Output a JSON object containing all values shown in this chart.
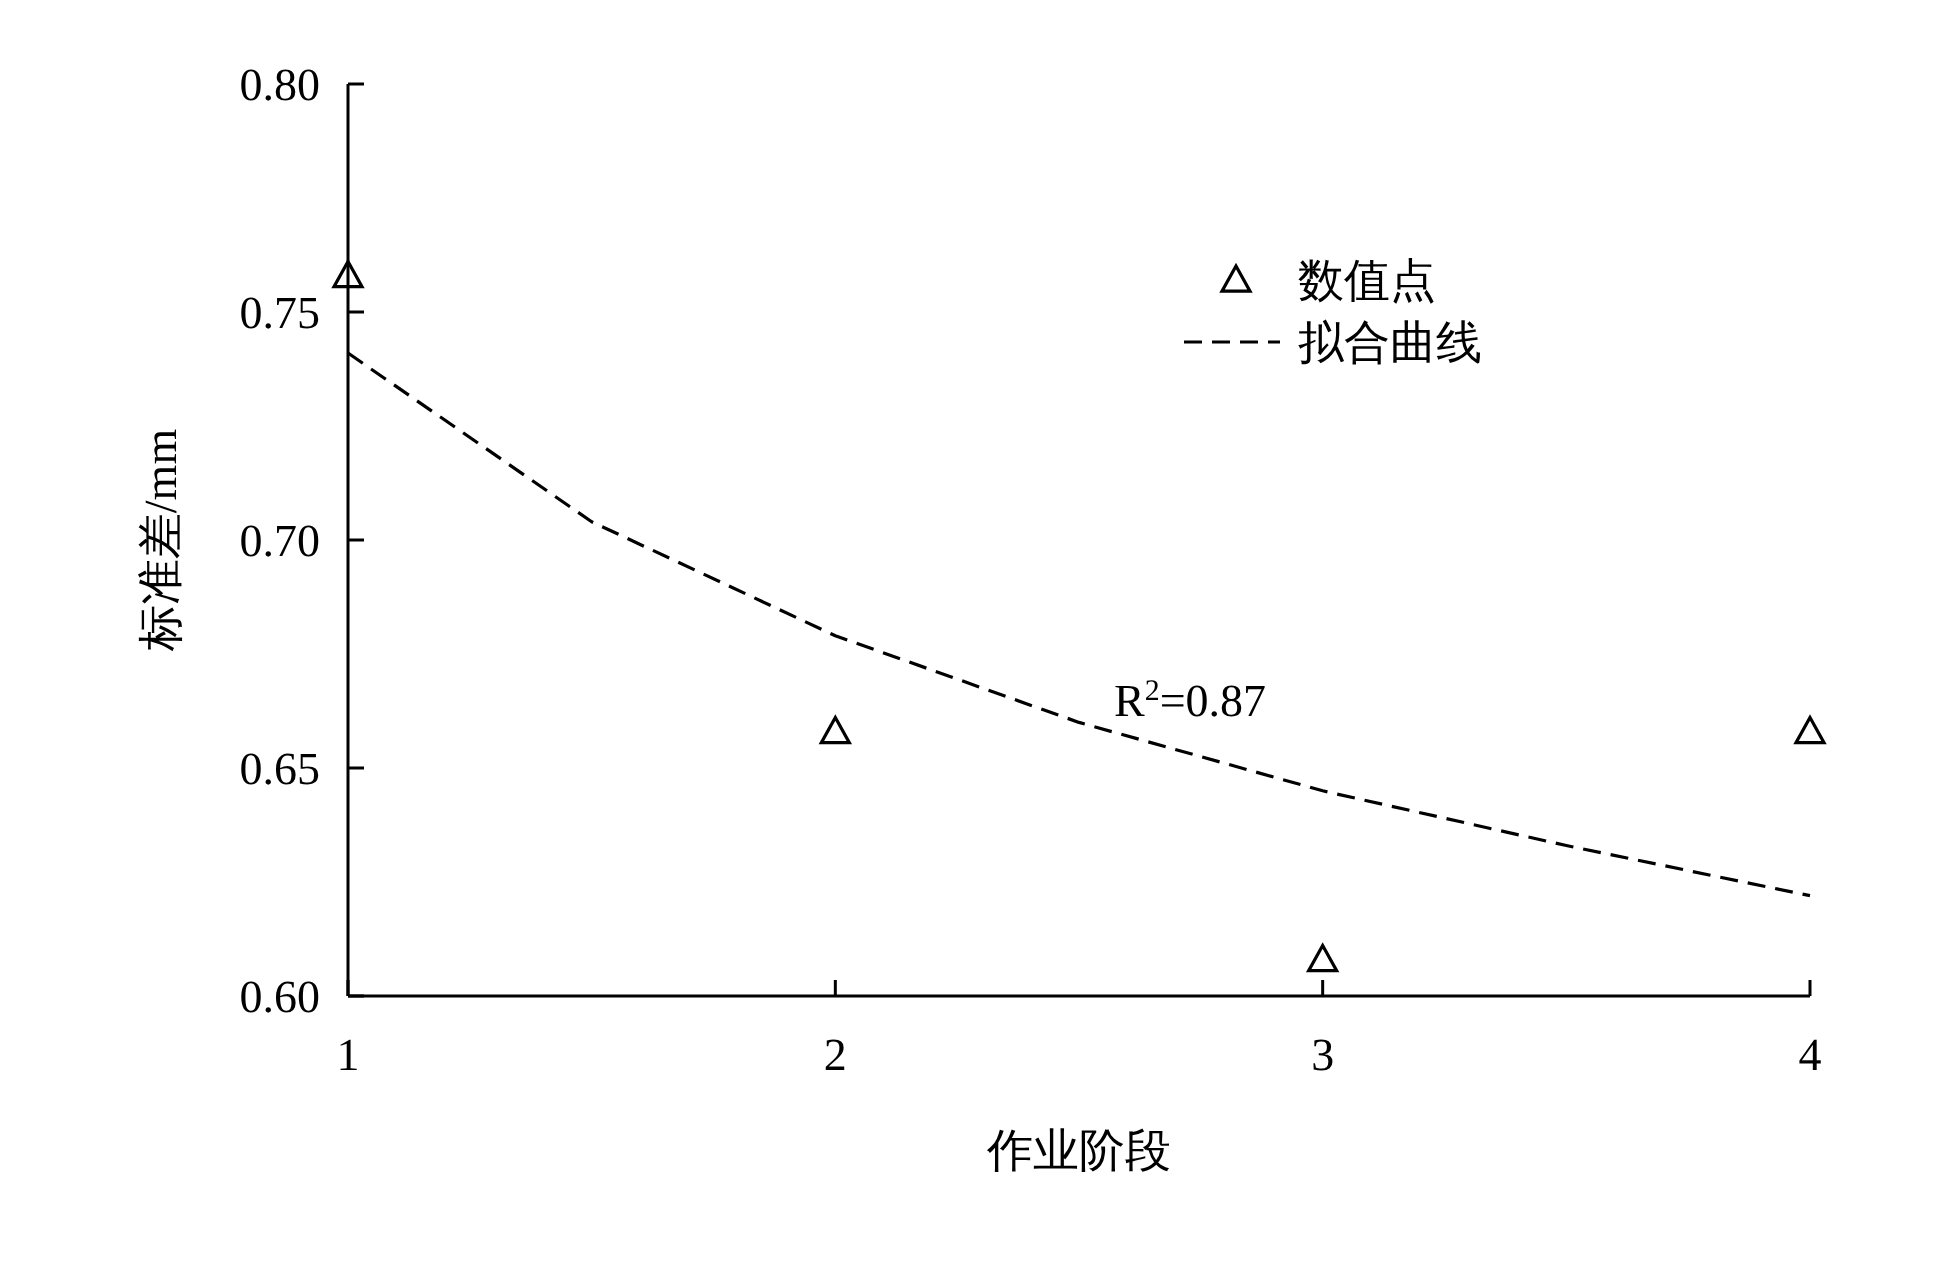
{
  "chart_data": {
    "type": "scatter",
    "xlabel": "作业阶段",
    "ylabel": "标准差/mm",
    "xlim": [
      1,
      4
    ],
    "xticks": [
      1,
      2,
      3,
      4
    ],
    "ylim": [
      0.6,
      0.8
    ],
    "yticks": [
      {
        "value": 0.6,
        "label": "0.60"
      },
      {
        "value": 0.65,
        "label": "0.65"
      },
      {
        "value": 0.7,
        "label": "0.70"
      },
      {
        "value": 0.75,
        "label": "0.75"
      },
      {
        "value": 0.8,
        "label": "0.80"
      }
    ],
    "grid": false,
    "legend": "top right",
    "series": [
      {
        "name": "数值点",
        "marker": "triangle",
        "color": "#000000",
        "x": [
          1,
          2,
          3,
          4
        ],
        "values": [
          0.758,
          0.658,
          0.608,
          0.658
        ]
      },
      {
        "name": "拟合曲线",
        "type": "line",
        "line_style": "dashed",
        "marker": "none",
        "color": "#000000",
        "x": [
          1,
          1.5,
          2,
          2.5,
          3,
          3.5,
          4
        ],
        "values": [
          0.741,
          0.704,
          0.679,
          0.66,
          0.645,
          0.633,
          0.622
        ]
      }
    ],
    "annotations": [
      "R$^{2}$=0.87"
    ]
  }
}
